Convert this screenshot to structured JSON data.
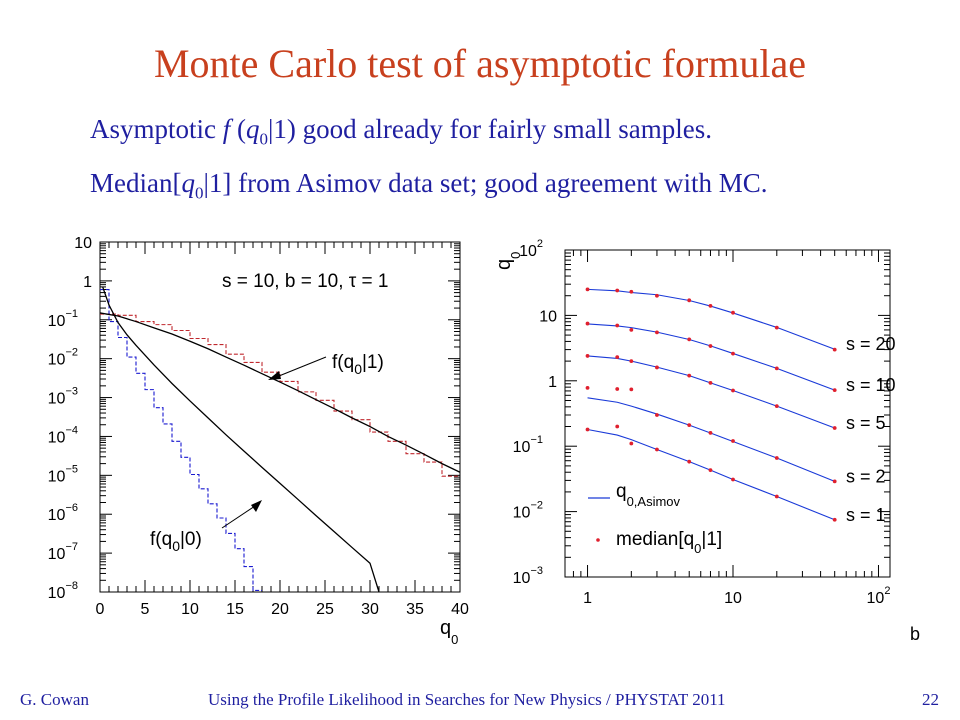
{
  "slide": {
    "title": "Monte Carlo test of asymptotic formulae",
    "bullet1": {
      "pre": "Asymptotic ",
      "f": "f",
      "mid": " (",
      "q": "q",
      "sub": "0",
      "post": "|1)  good already for fairly small samples."
    },
    "bullet2": {
      "pre": "Median[",
      "q": "q",
      "sub": "0",
      "post": "|1]  from Asimov  data set; good agreement with MC."
    }
  },
  "footer": {
    "author": "G. Cowan",
    "talk": "Using the Profile Likelihood in Searches for New Physics / PHYSTAT 2011",
    "page": "22"
  },
  "colors": {
    "title": "#c8401e",
    "text": "#1f1fa0",
    "h1": "#c0282e",
    "h0": "#1a1ad0",
    "curve": "#000000",
    "asimov": "#1a3ad8",
    "median": "#e0202e"
  },
  "chart_data": [
    {
      "type": "line",
      "scale": {
        "y": "log"
      },
      "xlim": [
        0,
        40
      ],
      "ylim": [
        1e-08,
        10
      ],
      "xticks": [
        "0",
        "5",
        "10",
        "15",
        "20",
        "25",
        "30",
        "35",
        "40"
      ],
      "yticks": [
        {
          "base": "10",
          "exp": "−8"
        },
        {
          "base": "10",
          "exp": "−7"
        },
        {
          "base": "10",
          "exp": "−6"
        },
        {
          "base": "10",
          "exp": "−5"
        },
        {
          "base": "10",
          "exp": "−4"
        },
        {
          "base": "10",
          "exp": "−3"
        },
        {
          "base": "10",
          "exp": "−2"
        },
        {
          "base": "10",
          "exp": "−1"
        },
        {
          "base": "1",
          "exp": ""
        },
        {
          "base": "10",
          "exp": ""
        }
      ],
      "xlabel": {
        "main": "q",
        "sub": "0"
      },
      "annotation": "s = 10, b = 10, τ = 1",
      "labels": {
        "h1": {
          "pre": "f(q",
          "sub": "0",
          "post": "|1)"
        },
        "h0": {
          "pre": "f(q",
          "sub": "0",
          "post": "|0)"
        }
      },
      "series": [
        {
          "kind": "histogram",
          "style": "dashed",
          "bin_width": 2,
          "values": [
            0.14,
            0.13,
            0.09,
            0.075,
            0.053,
            0.033,
            0.023,
            0.013,
            0.008,
            0.0045,
            0.0026,
            0.0014,
            0.00085,
            0.00045,
            0.00027,
            0.00013,
            7.5e-05,
            3.6e-05,
            2.2e-05,
            9.5e-06
          ]
        },
        {
          "kind": "histogram",
          "style": "dashed",
          "bin_width": 1,
          "values": [
            0.6,
            0.09,
            0.035,
            0.011,
            0.0042,
            0.0016,
            0.00055,
            0.00021,
            7.5e-05,
            2.9e-05,
            1.05e-05,
            4.5e-06,
            1.85e-06,
            8e-07,
            3.2e-07,
            1.3e-07,
            4.5e-08,
            1.1e-08
          ]
        },
        {
          "kind": "curve",
          "of": "h1",
          "x": [
            0,
            2,
            4,
            6,
            8,
            10,
            12,
            14,
            16,
            18,
            20,
            22,
            24,
            26,
            28,
            30,
            32,
            34,
            36,
            38,
            40
          ],
          "y": [
            0.15,
            0.125,
            0.09,
            0.062,
            0.043,
            0.028,
            0.018,
            0.011,
            0.0068,
            0.0041,
            0.0025,
            0.0015,
            0.00088,
            0.00052,
            0.0003,
            0.00018,
            0.0001,
            6e-05,
            3.5e-05,
            2e-05,
            1.2e-05
          ]
        },
        {
          "kind": "curve",
          "of": "h0",
          "x": [
            0.3,
            1,
            2,
            3,
            4,
            6,
            8,
            10,
            12,
            14,
            16,
            18,
            20,
            22,
            24,
            26,
            28,
            30,
            31
          ],
          "y": [
            0.7,
            0.24,
            0.085,
            0.041,
            0.022,
            0.0069,
            0.0023,
            0.00082,
            0.0003,
            0.00011,
            4.2e-05,
            1.6e-05,
            6.2e-06,
            2.4e-06,
            9.2e-07,
            3.6e-07,
            1.4e-07,
            5.5e-08,
            1e-08
          ]
        }
      ]
    },
    {
      "type": "line",
      "scale": {
        "x": "log",
        "y": "log"
      },
      "xlim": [
        0.7,
        120
      ],
      "ylim": [
        0.001,
        100
      ],
      "xticks": [
        {
          "base": "1",
          "exp": ""
        },
        {
          "base": "10",
          "exp": ""
        },
        {
          "base": "10",
          "exp": "2"
        }
      ],
      "yticks": [
        {
          "base": "10",
          "exp": "−3"
        },
        {
          "base": "10",
          "exp": "−2"
        },
        {
          "base": "10",
          "exp": "−1"
        },
        {
          "base": "1",
          "exp": ""
        },
        {
          "base": "10",
          "exp": ""
        },
        {
          "base": "10",
          "exp": "2"
        }
      ],
      "xlabel": "b",
      "ylabel": {
        "main": "q",
        "sub": "0"
      },
      "legend": {
        "asimov": {
          "main": "q",
          "sub": "0,Asimov"
        },
        "median": {
          "pre": "median[q",
          "sub": "0",
          "post": "|1]"
        }
      },
      "b_values": [
        1,
        1.6,
        2,
        3,
        5,
        7,
        10,
        20,
        50
      ],
      "series": [
        {
          "name": "s = 20",
          "asimov": [
            25.0,
            23.8,
            22.4,
            20.7,
            16.9,
            13.9,
            10.9,
            6.55,
            3.04
          ],
          "median": [
            25.0,
            24.0,
            23.0,
            20.0,
            17.0,
            14.0,
            11.0,
            6.5,
            3.0
          ]
        },
        {
          "name": "s = 10",
          "asimov": [
            7.4,
            6.9,
            6.5,
            5.55,
            4.28,
            3.42,
            2.62,
            1.55,
            0.72
          ],
          "median": [
            7.5,
            7.0,
            6.0,
            5.5,
            4.3,
            3.4,
            2.6,
            1.55,
            0.72
          ]
        },
        {
          "name": "s = 5",
          "asimov": [
            2.4,
            2.2,
            2.0,
            1.62,
            1.2,
            0.93,
            0.71,
            0.41,
            0.19
          ],
          "median": [
            2.4,
            2.3,
            2.0,
            1.6,
            1.2,
            0.93,
            0.71,
            0.41,
            0.19
          ]
        },
        {
          "name": "s = 2",
          "asimov": [
            0.55,
            0.47,
            0.41,
            0.31,
            0.21,
            0.159,
            0.118,
            0.066,
            0.029
          ],
          "median": [
            0.78,
            0.75,
            0.74,
            0.3,
            0.21,
            0.16,
            0.12,
            0.066,
            0.029
          ]
        },
        {
          "name": "s = 1",
          "asimov": [
            0.18,
            0.148,
            0.126,
            0.089,
            0.058,
            0.043,
            0.031,
            0.017,
            0.0075
          ],
          "median": [
            0.18,
            0.2,
            0.11,
            0.089,
            0.058,
            0.043,
            0.031,
            0.017,
            0.0075
          ]
        }
      ]
    }
  ]
}
